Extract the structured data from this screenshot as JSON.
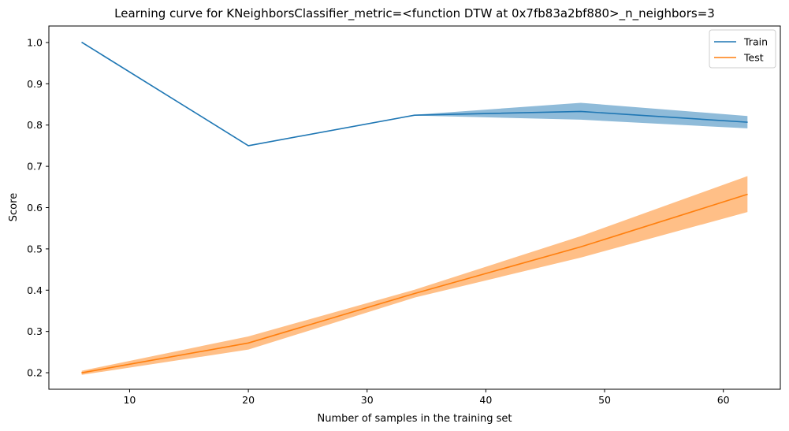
{
  "chart_data": {
    "type": "line",
    "title": "Learning curve for KNeighborsClassifier_metric=<function DTW at 0x7fb83a2bf880>_n_neighbors=3",
    "xlabel": "Number of samples in the training set",
    "ylabel": "Score",
    "xlim": [
      3.2,
      64.8
    ],
    "ylim": [
      0.16,
      1.04
    ],
    "xticks": [
      10,
      20,
      30,
      40,
      50,
      60
    ],
    "yticks": [
      0.2,
      0.3,
      0.4,
      0.5,
      0.6,
      0.7,
      0.8,
      0.9,
      1.0
    ],
    "legend_position": "top-right",
    "grid": false,
    "x": [
      6,
      20,
      34,
      48,
      62
    ],
    "series": [
      {
        "name": "Train",
        "color": "#1f77b4",
        "band_color": "#8fbbd9",
        "values": [
          1.0,
          0.75,
          0.824,
          0.833,
          0.807
        ],
        "lower": [
          1.0,
          0.75,
          0.824,
          0.814,
          0.793
        ],
        "upper": [
          1.0,
          0.75,
          0.824,
          0.853,
          0.821
        ]
      },
      {
        "name": "Test",
        "color": "#ff7f0e",
        "band_color": "#ffbf87",
        "values": [
          0.2,
          0.272,
          0.392,
          0.505,
          0.632
        ],
        "lower": [
          0.196,
          0.257,
          0.383,
          0.48,
          0.59
        ],
        "upper": [
          0.204,
          0.287,
          0.4,
          0.53,
          0.675
        ]
      }
    ]
  }
}
